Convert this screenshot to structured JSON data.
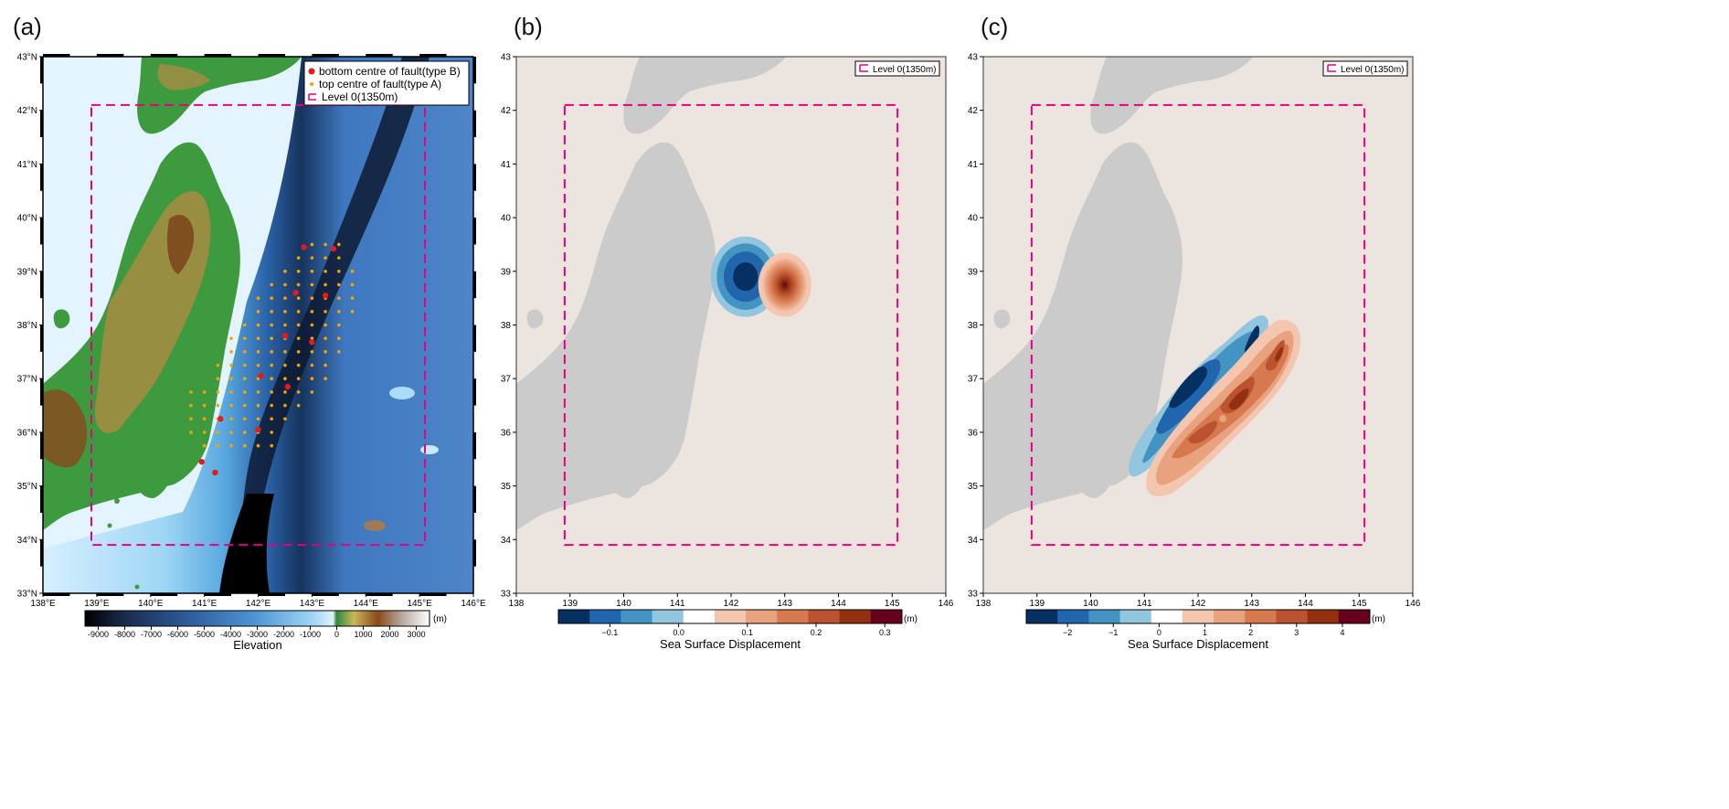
{
  "panels": [
    {
      "id": "a",
      "panel_label": "(a)",
      "x_ticks": [
        "138°E",
        "139°E",
        "140°E",
        "141°E",
        "142°E",
        "143°E",
        "144°E",
        "145°E",
        "146°E"
      ],
      "y_ticks": [
        "33°N",
        "34°N",
        "35°N",
        "36°N",
        "37°N",
        "38°N",
        "39°N",
        "40°N",
        "41°N",
        "42°N",
        "43°N"
      ],
      "legend": [
        {
          "label": "bottom centre of fault(type B)",
          "color": "#e41a1c",
          "symbol": "dot"
        },
        {
          "label": "top centre of fault(type A)",
          "color": "#f7a400",
          "symbol": "small-dot"
        },
        {
          "label": "Level 0(1350m)",
          "color": "#e6007e",
          "symbol": "dashed-box"
        }
      ],
      "colorbar": {
        "ticks": [
          "-9000",
          "-8000",
          "-7000",
          "-6000",
          "-5000",
          "-4000",
          "-3000",
          "-2000",
          "-1000",
          "0",
          "1000",
          "2000",
          "3000"
        ],
        "unit": "(m)",
        "title": "Elevation"
      }
    },
    {
      "id": "b",
      "panel_label": "(b)",
      "x_ticks": [
        "138",
        "139",
        "140",
        "141",
        "142",
        "143",
        "144",
        "145",
        "146"
      ],
      "y_ticks": [
        "33",
        "34",
        "35",
        "36",
        "37",
        "38",
        "39",
        "40",
        "41",
        "42",
        "43"
      ],
      "legend": [
        {
          "label": "Level 0(1350m)",
          "color": "#e6007e",
          "symbol": "dashed-box"
        }
      ],
      "colorbar": {
        "ticks": [
          "−0.1",
          "0.0",
          "0.1",
          "0.2",
          "0.3"
        ],
        "unit": "(m)",
        "title": "Sea Surface Displacement",
        "colors": [
          "#053061",
          "#2166ac",
          "#4393c3",
          "#92c5de",
          "#ffffff",
          "#f4c6b0",
          "#e8a27e",
          "#d6794f",
          "#bb5230",
          "#92300f",
          "#67001f"
        ]
      }
    },
    {
      "id": "c",
      "panel_label": "(c)",
      "x_ticks": [
        "138",
        "139",
        "140",
        "141",
        "142",
        "143",
        "144",
        "145",
        "146"
      ],
      "y_ticks": [
        "33",
        "34",
        "35",
        "36",
        "37",
        "38",
        "39",
        "40",
        "41",
        "42",
        "43"
      ],
      "legend": [
        {
          "label": "Level 0(1350m)",
          "color": "#e6007e",
          "symbol": "dashed-box"
        }
      ],
      "colorbar": {
        "ticks": [
          "−2",
          "−1",
          "0",
          "1",
          "2",
          "3",
          "4"
        ],
        "unit": "(m)",
        "title": "Sea Surface Displacement",
        "colors": [
          "#053061",
          "#2166ac",
          "#4393c3",
          "#92c5de",
          "#ffffff",
          "#f4c6b0",
          "#e8a27e",
          "#d6794f",
          "#bb5230",
          "#92300f",
          "#67001f"
        ]
      }
    }
  ],
  "map_extent": {
    "lon": [
      138,
      146
    ],
    "lat": [
      33,
      43
    ]
  },
  "level0_box": {
    "lon": [
      138.9,
      145.1
    ],
    "lat": [
      33.9,
      42.1
    ]
  },
  "fault_points_typeA": [
    [
      143.0,
      39.5
    ],
    [
      143.25,
      39.5
    ],
    [
      143.5,
      39.5
    ],
    [
      142.75,
      39.25
    ],
    [
      143.0,
      39.25
    ],
    [
      143.25,
      39.25
    ],
    [
      143.5,
      39.25
    ],
    [
      142.5,
      39.0
    ],
    [
      142.75,
      39.0
    ],
    [
      143.0,
      39.0
    ],
    [
      143.25,
      39.0
    ],
    [
      143.5,
      39.0
    ],
    [
      143.75,
      39.0
    ],
    [
      142.25,
      38.75
    ],
    [
      142.5,
      38.75
    ],
    [
      142.75,
      38.75
    ],
    [
      143.0,
      38.75
    ],
    [
      143.25,
      38.75
    ],
    [
      143.5,
      38.75
    ],
    [
      143.75,
      38.75
    ],
    [
      142.0,
      38.5
    ],
    [
      142.25,
      38.5
    ],
    [
      142.5,
      38.5
    ],
    [
      142.75,
      38.5
    ],
    [
      143.0,
      38.5
    ],
    [
      143.25,
      38.5
    ],
    [
      143.5,
      38.5
    ],
    [
      143.75,
      38.5
    ],
    [
      142.0,
      38.25
    ],
    [
      142.25,
      38.25
    ],
    [
      142.5,
      38.25
    ],
    [
      142.75,
      38.25
    ],
    [
      143.0,
      38.25
    ],
    [
      143.25,
      38.25
    ],
    [
      143.5,
      38.25
    ],
    [
      143.75,
      38.25
    ],
    [
      141.75,
      38.0
    ],
    [
      142.0,
      38.0
    ],
    [
      142.25,
      38.0
    ],
    [
      142.5,
      38.0
    ],
    [
      142.75,
      38.0
    ],
    [
      143.0,
      38.0
    ],
    [
      143.25,
      38.0
    ],
    [
      143.5,
      38.0
    ],
    [
      141.5,
      37.75
    ],
    [
      141.75,
      37.75
    ],
    [
      142.0,
      37.75
    ],
    [
      142.25,
      37.75
    ],
    [
      142.5,
      37.75
    ],
    [
      142.75,
      37.75
    ],
    [
      143.0,
      37.75
    ],
    [
      143.25,
      37.75
    ],
    [
      143.5,
      37.75
    ],
    [
      141.5,
      37.5
    ],
    [
      141.75,
      37.5
    ],
    [
      142.0,
      37.5
    ],
    [
      142.25,
      37.5
    ],
    [
      142.5,
      37.5
    ],
    [
      142.75,
      37.5
    ],
    [
      143.0,
      37.5
    ],
    [
      143.25,
      37.5
    ],
    [
      143.5,
      37.5
    ],
    [
      141.25,
      37.25
    ],
    [
      141.5,
      37.25
    ],
    [
      141.75,
      37.25
    ],
    [
      142.0,
      37.25
    ],
    [
      142.25,
      37.25
    ],
    [
      142.5,
      37.25
    ],
    [
      142.75,
      37.25
    ],
    [
      143.0,
      37.25
    ],
    [
      143.25,
      37.25
    ],
    [
      141.25,
      37.0
    ],
    [
      141.5,
      37.0
    ],
    [
      141.75,
      37.0
    ],
    [
      142.0,
      37.0
    ],
    [
      142.25,
      37.0
    ],
    [
      142.5,
      37.0
    ],
    [
      142.75,
      37.0
    ],
    [
      143.0,
      37.0
    ],
    [
      143.25,
      37.0
    ],
    [
      140.75,
      36.75
    ],
    [
      141.0,
      36.75
    ],
    [
      141.25,
      36.75
    ],
    [
      141.5,
      36.75
    ],
    [
      141.75,
      36.75
    ],
    [
      142.0,
      36.75
    ],
    [
      142.25,
      36.75
    ],
    [
      142.5,
      36.75
    ],
    [
      142.75,
      36.75
    ],
    [
      143.0,
      36.75
    ],
    [
      140.75,
      36.5
    ],
    [
      141.0,
      36.5
    ],
    [
      141.25,
      36.5
    ],
    [
      141.5,
      36.5
    ],
    [
      141.75,
      36.5
    ],
    [
      142.0,
      36.5
    ],
    [
      142.25,
      36.5
    ],
    [
      142.5,
      36.5
    ],
    [
      142.75,
      36.5
    ],
    [
      140.75,
      36.25
    ],
    [
      141.0,
      36.25
    ],
    [
      141.25,
      36.25
    ],
    [
      141.5,
      36.25
    ],
    [
      141.75,
      36.25
    ],
    [
      142.0,
      36.25
    ],
    [
      142.25,
      36.25
    ],
    [
      142.5,
      36.25
    ],
    [
      140.75,
      36.0
    ],
    [
      141.0,
      36.0
    ],
    [
      141.25,
      36.0
    ],
    [
      141.5,
      36.0
    ],
    [
      141.75,
      36.0
    ],
    [
      142.0,
      36.0
    ],
    [
      142.25,
      36.0
    ],
    [
      141.0,
      35.75
    ],
    [
      141.25,
      35.75
    ],
    [
      141.5,
      35.75
    ],
    [
      141.75,
      35.75
    ],
    [
      142.0,
      35.75
    ],
    [
      142.25,
      35.75
    ]
  ],
  "fault_points_typeB": [
    [
      142.85,
      39.45
    ],
    [
      143.4,
      39.42
    ],
    [
      142.7,
      38.6
    ],
    [
      143.25,
      38.55
    ],
    [
      142.5,
      37.8
    ],
    [
      143.0,
      37.68
    ],
    [
      142.05,
      37.05
    ],
    [
      142.55,
      36.85
    ],
    [
      141.3,
      36.25
    ],
    [
      142.0,
      36.05
    ],
    [
      140.95,
      35.45
    ],
    [
      141.2,
      35.25
    ]
  ],
  "displacement_b": {
    "negative_center": [
      142.2,
      38.9
    ],
    "positive_center": [
      143.0,
      38.75
    ],
    "levels": [
      -0.15,
      -0.1,
      -0.05,
      0.05,
      0.1,
      0.15,
      0.2,
      0.25,
      0.3
    ]
  },
  "displacement_c": {
    "negative_band": [
      [
        141.0,
        35.3
      ],
      [
        142.0,
        36.9
      ],
      [
        143.2,
        37.9
      ]
    ],
    "positive_band": [
      [
        141.6,
        35.0
      ],
      [
        142.6,
        36.2
      ],
      [
        143.6,
        37.8
      ]
    ],
    "levels": [
      -2,
      -1,
      -0.5,
      0.5,
      1,
      2,
      3,
      4
    ]
  }
}
